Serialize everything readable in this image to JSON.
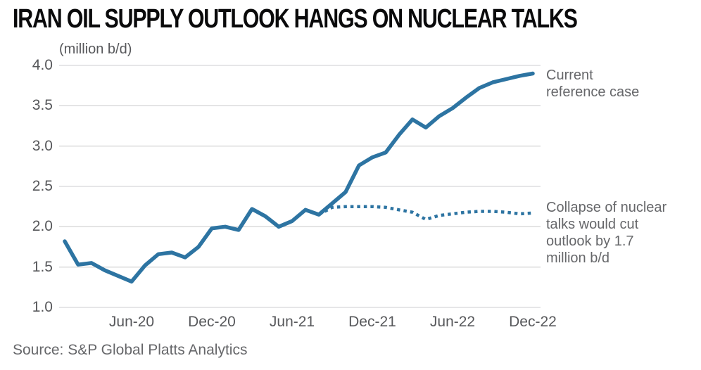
{
  "header": {
    "title": "IRAN OIL SUPPLY OUTLOOK HANGS ON NUCLEAR TALKS",
    "units_label": "(million b/d)"
  },
  "annotations": {
    "solid_line_label": "Current reference case",
    "dotted_line_label": "Collapse of nuclear talks would cut outlook by 1.7 million b/d"
  },
  "source": {
    "text": "Source: S&P Global Platts Analytics"
  },
  "chart_data": {
    "type": "line",
    "title": "IRAN OIL SUPPLY OUTLOOK HANGS ON NUCLEAR TALKS",
    "ylabel": "(million b/d)",
    "xlabel": "",
    "ylim": [
      1.0,
      4.0
    ],
    "grid": "horizontal",
    "legend_position": "right-annotations",
    "y_ticks": [
      "4.0",
      "3.5",
      "3.0",
      "2.5",
      "2.0",
      "1.5",
      "1.0"
    ],
    "x_ticks": [
      {
        "label": "Jun-20",
        "month_index": 5
      },
      {
        "label": "Dec-20",
        "month_index": 11
      },
      {
        "label": "Jun-21",
        "month_index": 17
      },
      {
        "label": "Dec-21",
        "month_index": 23
      },
      {
        "label": "Jun-22",
        "month_index": 29
      },
      {
        "label": "Dec-22",
        "month_index": 35
      }
    ],
    "months": [
      "Jan-20",
      "Feb-20",
      "Mar-20",
      "Apr-20",
      "May-20",
      "Jun-20",
      "Jul-20",
      "Aug-20",
      "Sep-20",
      "Oct-20",
      "Nov-20",
      "Dec-20",
      "Jan-21",
      "Feb-21",
      "Mar-21",
      "Apr-21",
      "May-21",
      "Jun-21",
      "Jul-21",
      "Aug-21",
      "Sep-21",
      "Oct-21",
      "Nov-21",
      "Dec-21",
      "Jan-22",
      "Feb-22",
      "Mar-22",
      "Apr-22",
      "May-22",
      "Jun-22",
      "Jul-22",
      "Aug-22",
      "Sep-22",
      "Oct-22",
      "Nov-22",
      "Dec-22"
    ],
    "series": [
      {
        "name": "Current reference case",
        "id": "current-reference-case-line",
        "style": "solid",
        "start_index": 0,
        "values": [
          1.82,
          1.53,
          1.55,
          1.46,
          1.39,
          1.32,
          1.52,
          1.66,
          1.68,
          1.62,
          1.75,
          1.98,
          2.0,
          1.96,
          2.22,
          2.13,
          2.0,
          2.07,
          2.21,
          2.15,
          2.29,
          2.43,
          2.76,
          2.86,
          2.92,
          3.14,
          3.33,
          3.23,
          3.37,
          3.47,
          3.6,
          3.72,
          3.79,
          3.83,
          3.87,
          3.9
        ]
      },
      {
        "name": "Collapse of nuclear talks",
        "id": "collapse-scenario-line",
        "style": "dotted",
        "start_index": 19,
        "values": [
          2.15,
          2.24,
          2.25,
          2.25,
          2.25,
          2.24,
          2.21,
          2.18,
          2.09,
          2.14,
          2.16,
          2.18,
          2.19,
          2.19,
          2.18,
          2.16,
          2.17
        ]
      }
    ],
    "colors": {
      "line": "#2d74a2",
      "grid": "#d8d8d9",
      "axis_text": "#57585b",
      "annotation_text": "#66676a",
      "title_text": "#0a0a0b"
    }
  }
}
